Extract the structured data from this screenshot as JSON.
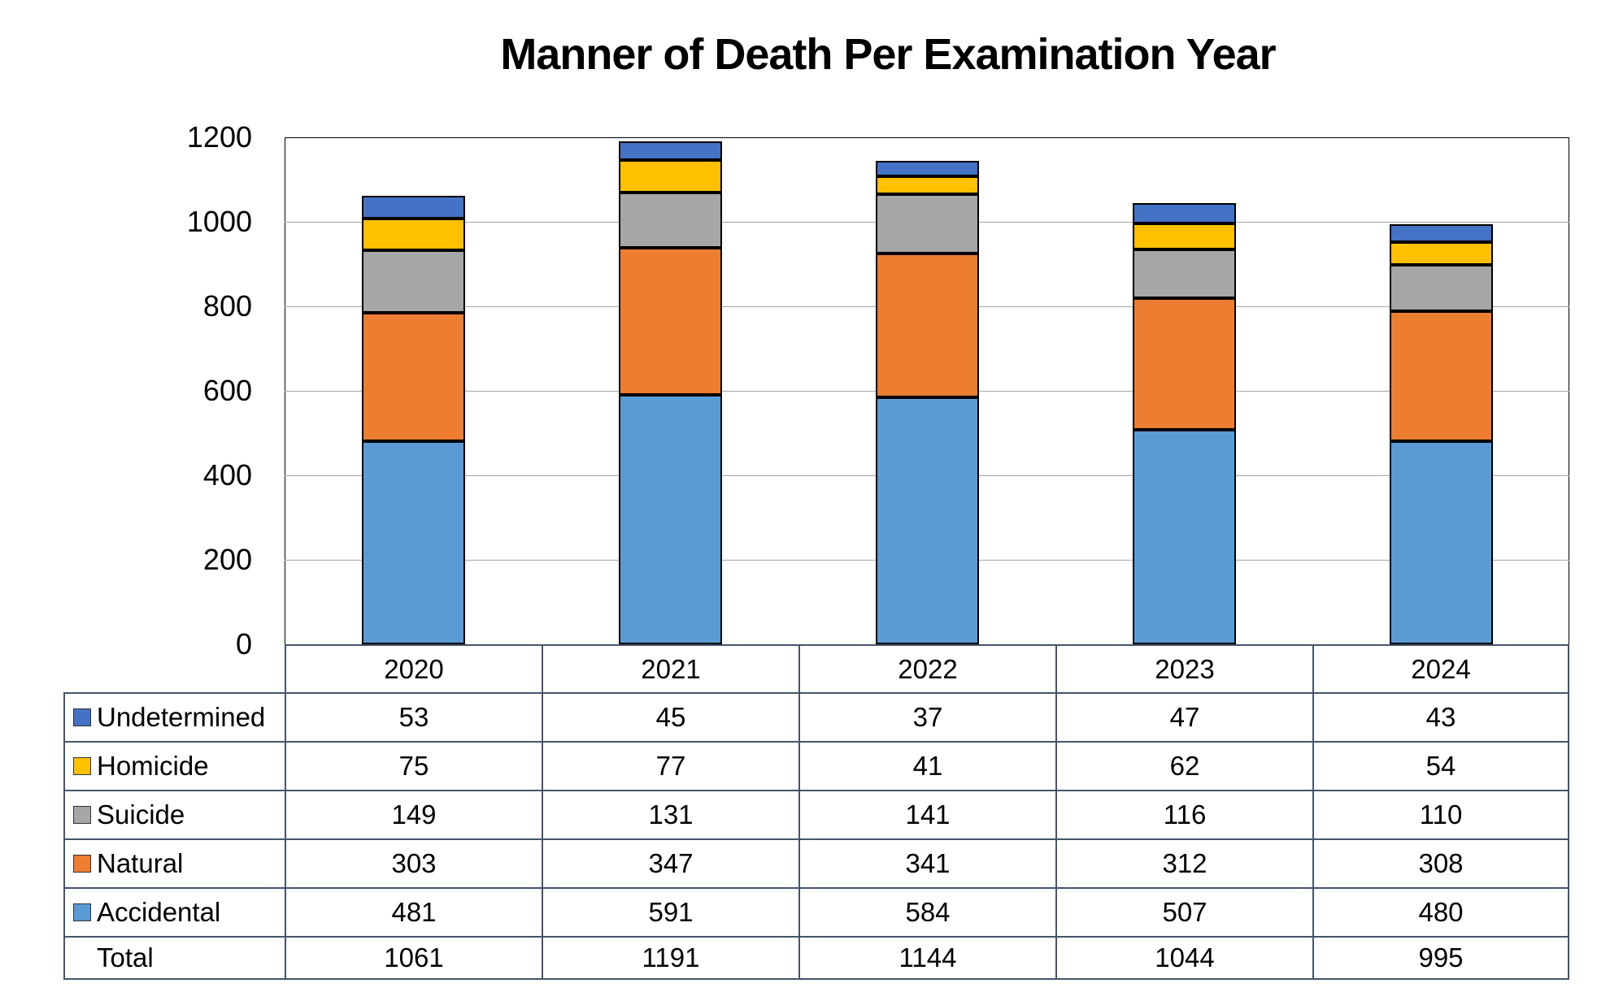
{
  "title": "Manner of Death Per Examination Year",
  "colors": {
    "table_border": "#44546A",
    "gridline": "#A6A6A6",
    "bar_outline": "#000000",
    "undetermined": "#4472C4",
    "homicide": "#FFC000",
    "suicide": "#A6A6A6",
    "natural": "#ED7D31",
    "accidental": "#5B9BD5"
  },
  "chart_data": {
    "type": "bar",
    "stacked": true,
    "title": "Manner of Death Per Examination Year",
    "xlabel": "",
    "ylabel": "",
    "grid": true,
    "legend_position": "data-table-left",
    "categories": [
      "2020",
      "2021",
      "2022",
      "2023",
      "2024"
    ],
    "series": [
      {
        "name": "Undetermined",
        "color": "#4472C4",
        "values": [
          53,
          45,
          37,
          47,
          43
        ]
      },
      {
        "name": "Homicide",
        "color": "#FFC000",
        "values": [
          75,
          77,
          41,
          62,
          54
        ]
      },
      {
        "name": "Suicide",
        "color": "#A6A6A6",
        "values": [
          149,
          131,
          141,
          116,
          110
        ]
      },
      {
        "name": "Natural",
        "color": "#ED7D31",
        "values": [
          303,
          347,
          341,
          312,
          308
        ]
      },
      {
        "name": "Accidental",
        "color": "#5B9BD5",
        "values": [
          481,
          591,
          584,
          507,
          480
        ]
      }
    ],
    "stack_order_bottom_to_top": [
      "Accidental",
      "Natural",
      "Suicide",
      "Homicide",
      "Undetermined"
    ],
    "totals": {
      "label": "Total",
      "values": [
        1061,
        1191,
        1144,
        1044,
        995
      ]
    },
    "y_axis": {
      "min": 0,
      "max": 1200,
      "step": 200,
      "ticks": [
        "0",
        "200",
        "400",
        "600",
        "800",
        "1000",
        "1200"
      ]
    }
  }
}
